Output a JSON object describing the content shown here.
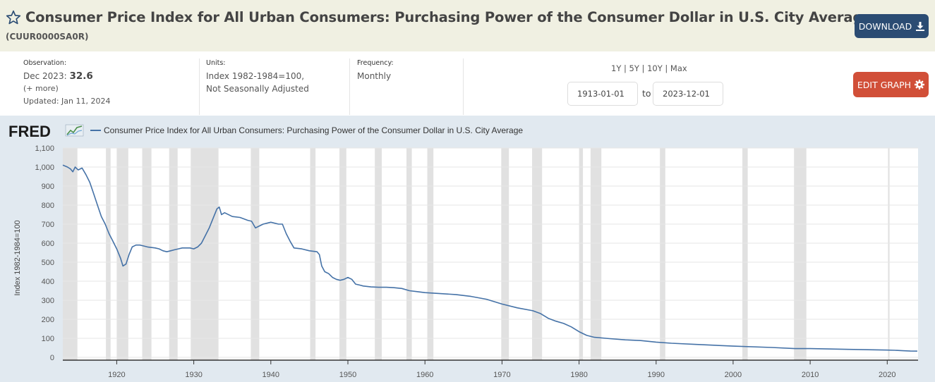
{
  "header": {
    "title": "Consumer Price Index for All Urban Consumers: Purchasing Power of the Consumer Dollar in U.S. City Average",
    "series_id": "(CUUR0000SA0R)",
    "download_label": "DOWNLOAD",
    "star_icon": "star-outline-icon",
    "download_icon": "download-arrow-icon"
  },
  "meta": {
    "observation_label": "Observation:",
    "observation_date": "Dec 2023:",
    "observation_value": "32.6",
    "more_label": "(+ more)",
    "updated": "Updated: Jan 11, 2024",
    "units_label": "Units:",
    "units_line1": "Index 1982-1984=100,",
    "units_line2": "Not Seasonally Adjusted",
    "frequency_label": "Frequency:",
    "frequency_value": "Monthly"
  },
  "range": {
    "links": [
      "1Y",
      "5Y",
      "10Y",
      "Max"
    ],
    "separator": "|",
    "start_date": "1913-01-01",
    "end_date": "2023-12-01",
    "to_label": "to",
    "edit_label": "EDIT GRAPH",
    "edit_icon": "gear-icon"
  },
  "colors": {
    "header_bg": "#f0f0e2",
    "chart_bg": "#e1e9f0",
    "series_line": "#4572a7",
    "recession": "#e1e1e1",
    "download_btn": "#2b4c73",
    "edit_btn": "#d14f38"
  },
  "chart_data": {
    "type": "line",
    "title": "",
    "logo": "FRED",
    "legend_position": "top-left",
    "ylabel": "Index 1982-1984=100",
    "xlabel": "",
    "ylim": [
      0,
      1100
    ],
    "xlim": [
      1913.0,
      2024.0
    ],
    "grid": true,
    "y_ticks": [
      0,
      100,
      200,
      300,
      400,
      500,
      600,
      700,
      800,
      900,
      1000,
      1100
    ],
    "y_tick_labels": [
      "0",
      "100",
      "200",
      "300",
      "400",
      "500",
      "600",
      "700",
      "800",
      "900",
      "1,000",
      "1,100"
    ],
    "x_ticks": [
      1920,
      1930,
      1940,
      1950,
      1960,
      1970,
      1980,
      1990,
      2000,
      2010,
      2020
    ],
    "x_tick_labels": [
      "1920",
      "1930",
      "1940",
      "1950",
      "1960",
      "1970",
      "1980",
      "1990",
      "2000",
      "2010",
      "2020"
    ],
    "recessions": [
      [
        1913.0,
        1914.9
      ],
      [
        1918.6,
        1919.2
      ],
      [
        1920.0,
        1921.5
      ],
      [
        1923.3,
        1924.5
      ],
      [
        1926.8,
        1927.9
      ],
      [
        1929.6,
        1933.2
      ],
      [
        1937.4,
        1938.5
      ],
      [
        1945.1,
        1945.8
      ],
      [
        1948.9,
        1949.8
      ],
      [
        1953.5,
        1954.4
      ],
      [
        1957.6,
        1958.3
      ],
      [
        1960.3,
        1961.1
      ],
      [
        1969.9,
        1970.9
      ],
      [
        1973.9,
        1975.2
      ],
      [
        1980.0,
        1980.5
      ],
      [
        1981.5,
        1982.9
      ],
      [
        1990.5,
        1991.2
      ],
      [
        2001.2,
        2001.9
      ],
      [
        2007.9,
        2009.5
      ],
      [
        2020.1,
        2020.3
      ]
    ],
    "series": [
      {
        "name": "Consumer Price Index for All Urban Consumers: Purchasing Power of the Consumer Dollar in U.S. City Average",
        "x": [
          1913.0,
          1913.3,
          1913.6,
          1914.0,
          1914.3,
          1914.6,
          1915.0,
          1915.5,
          1916.0,
          1916.5,
          1917.0,
          1917.5,
          1918.0,
          1918.5,
          1919.0,
          1919.5,
          1920.0,
          1920.5,
          1920.8,
          1921.2,
          1921.6,
          1922.0,
          1922.5,
          1923.0,
          1923.5,
          1924.0,
          1925.0,
          1925.5,
          1926.0,
          1926.5,
          1927.0,
          1927.5,
          1928.0,
          1928.5,
          1929.0,
          1929.5,
          1930.0,
          1930.5,
          1931.0,
          1931.5,
          1932.0,
          1932.5,
          1933.0,
          1933.3,
          1933.6,
          1934.0,
          1935.0,
          1936.0,
          1937.0,
          1937.5,
          1938.0,
          1939.0,
          1940.0,
          1941.0,
          1941.5,
          1942.0,
          1942.5,
          1943.0,
          1944.0,
          1945.0,
          1946.0,
          1946.3,
          1946.6,
          1947.0,
          1947.5,
          1948.0,
          1948.5,
          1949.0,
          1949.5,
          1950.0,
          1950.5,
          1951.0,
          1951.5,
          1952.0,
          1953.0,
          1954.0,
          1955.0,
          1956.0,
          1957.0,
          1958.0,
          1959.0,
          1960.0,
          1962.0,
          1964.0,
          1966.0,
          1968.0,
          1970.0,
          1972.0,
          1974.0,
          1975.0,
          1976.0,
          1977.0,
          1978.0,
          1979.0,
          1980.0,
          1981.0,
          1982.0,
          1984.0,
          1986.0,
          1988.0,
          1990.0,
          1992.0,
          1995.0,
          2000.0,
          2005.0,
          2008.0,
          2010.0,
          2015.0,
          2020.0,
          2021.0,
          2022.0,
          2023.0,
          2023.9
        ],
        "values": [
          1010,
          1005,
          1000,
          990,
          975,
          1000,
          985,
          995,
          960,
          920,
          860,
          800,
          740,
          700,
          650,
          610,
          570,
          520,
          480,
          490,
          540,
          580,
          590,
          590,
          585,
          580,
          575,
          570,
          560,
          555,
          560,
          565,
          570,
          575,
          575,
          575,
          570,
          580,
          600,
          640,
          680,
          730,
          780,
          790,
          750,
          760,
          740,
          735,
          720,
          715,
          680,
          700,
          710,
          700,
          700,
          650,
          610,
          575,
          570,
          560,
          555,
          540,
          480,
          450,
          440,
          420,
          410,
          405,
          410,
          420,
          410,
          385,
          380,
          375,
          370,
          368,
          368,
          366,
          362,
          350,
          345,
          340,
          335,
          330,
          320,
          305,
          280,
          260,
          245,
          230,
          205,
          190,
          178,
          160,
          135,
          115,
          105,
          98,
          92,
          88,
          80,
          74,
          68,
          59,
          52,
          46,
          46,
          42,
          38,
          37,
          35,
          33,
          32.6
        ]
      }
    ]
  }
}
